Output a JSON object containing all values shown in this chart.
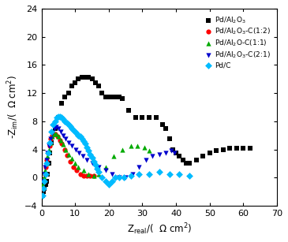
{
  "xlabel": "Z$_\\mathrm{real}$/(  Ω cm$^2$)",
  "ylabel": "-Z$_\\mathrm{im}$/(  Ω cm$^2$)",
  "xlim": [
    0,
    70
  ],
  "ylim": [
    -4,
    24
  ],
  "xticks": [
    0,
    10,
    20,
    30,
    40,
    50,
    60,
    70
  ],
  "yticks": [
    -4,
    0,
    4,
    8,
    12,
    16,
    20,
    24
  ],
  "series": [
    {
      "label": "Pd/Al$_2$O$_3$",
      "color": "black",
      "marker": "s",
      "ms": 4.5,
      "x": [
        0.3,
        0.6,
        0.9,
        1.2,
        1.5,
        1.8,
        2.1,
        2.5,
        3.0,
        4.0,
        5.0,
        6.0,
        7.0,
        8.0,
        9.0,
        10.0,
        11.0,
        12.0,
        13.0,
        14.0,
        15.0,
        16.0,
        17.0,
        18.0,
        19.0,
        20.0,
        21.0,
        22.0,
        23.0,
        24.0,
        26.0,
        28.0,
        30.0,
        32.0,
        34.0,
        36.0,
        37.0,
        38.0,
        39.0,
        40.0,
        41.0,
        42.0,
        43.0,
        44.0,
        46.0,
        48.0,
        50.0,
        52.0,
        54.0,
        56.0,
        58.0,
        60.0,
        62.0
      ],
      "y": [
        -2.5,
        -2.0,
        -1.5,
        -1.0,
        -0.5,
        0.5,
        2.0,
        3.5,
        5.0,
        7.0,
        8.5,
        10.5,
        11.5,
        12.0,
        13.0,
        13.5,
        14.0,
        14.3,
        14.3,
        14.2,
        14.0,
        13.5,
        13.0,
        12.0,
        11.5,
        11.5,
        11.5,
        11.5,
        11.5,
        11.2,
        9.5,
        8.5,
        8.5,
        8.5,
        8.5,
        7.5,
        7.0,
        5.5,
        4.0,
        3.5,
        3.0,
        2.5,
        2.0,
        2.0,
        2.5,
        3.0,
        3.5,
        3.8,
        4.0,
        4.2,
        4.2,
        4.2,
        4.2
      ]
    },
    {
      "label": "Pd/Al$_2$O$_3$-C(1:2)",
      "color": "#ff0000",
      "marker": "o",
      "ms": 4.5,
      "x": [
        0.4,
        0.7,
        1.0,
        1.3,
        1.6,
        2.0,
        2.4,
        2.8,
        3.2,
        3.7,
        4.2,
        4.8,
        5.4,
        6.0,
        6.8,
        7.5,
        8.5,
        9.5,
        10.5,
        11.5,
        12.5,
        13.5,
        14.5,
        15.5
      ],
      "y": [
        -1.5,
        -0.5,
        0.5,
        1.5,
        2.5,
        3.5,
        4.5,
        5.5,
        6.0,
        6.2,
        6.2,
        5.8,
        5.3,
        4.8,
        4.0,
        3.2,
        2.3,
        1.5,
        1.0,
        0.5,
        0.2,
        0.2,
        0.2,
        0.2
      ]
    },
    {
      "label": "Pd/Al$_2$O-C(1:1)",
      "color": "#00aa00",
      "marker": "^",
      "ms": 4.5,
      "x": [
        0.4,
        0.7,
        1.0,
        1.4,
        1.8,
        2.2,
        2.7,
        3.2,
        3.8,
        4.4,
        5.0,
        5.7,
        6.4,
        7.1,
        8.0,
        9.0,
        10.0,
        11.0,
        12.5,
        14.0,
        15.5,
        17.0,
        19.0,
        21.5,
        24.0,
        26.5,
        28.5,
        30.5,
        32.0
      ],
      "y": [
        -1.0,
        0.0,
        1.0,
        2.0,
        3.0,
        4.0,
        5.0,
        5.8,
        6.2,
        6.2,
        5.8,
        5.3,
        4.7,
        4.0,
        3.3,
        2.7,
        2.0,
        1.5,
        1.0,
        0.5,
        0.2,
        0.5,
        1.5,
        3.0,
        4.0,
        4.5,
        4.5,
        4.3,
        3.8
      ]
    },
    {
      "label": "Pd/Al$_2$O$_3$-C(2:1)",
      "color": "#0000cc",
      "marker": "v",
      "ms": 4.5,
      "x": [
        0.4,
        0.7,
        1.0,
        1.4,
        1.8,
        2.2,
        2.7,
        3.2,
        3.8,
        4.4,
        5.0,
        5.7,
        6.4,
        7.2,
        8.1,
        9.1,
        10.1,
        11.2,
        12.3,
        13.5,
        15.0,
        17.0,
        19.0,
        21.0,
        23.0,
        25.0,
        27.0,
        29.0,
        31.0,
        33.0,
        35.0,
        37.0,
        38.5,
        39.5
      ],
      "y": [
        -0.5,
        0.5,
        1.5,
        2.5,
        3.5,
        4.5,
        5.5,
        6.3,
        7.0,
        7.2,
        7.0,
        6.5,
        6.0,
        5.5,
        5.0,
        4.5,
        4.0,
        3.5,
        3.0,
        2.5,
        2.0,
        1.5,
        1.0,
        0.5,
        0.0,
        0.0,
        0.5,
        1.5,
        2.5,
        3.0,
        3.3,
        3.5,
        3.8,
        3.5
      ]
    },
    {
      "label": "Pd/C",
      "color": "#00bbff",
      "marker": "D",
      "ms": 4.5,
      "x": [
        0.3,
        0.6,
        0.9,
        1.2,
        1.6,
        2.0,
        2.5,
        3.0,
        3.5,
        4.0,
        4.5,
        5.0,
        5.5,
        6.0,
        6.5,
        7.0,
        7.5,
        8.0,
        8.5,
        9.0,
        9.5,
        10.0,
        10.5,
        11.0,
        11.5,
        12.0,
        12.5,
        13.0,
        13.5,
        14.0,
        14.5,
        15.0,
        15.5,
        16.0,
        16.5,
        17.0,
        18.0,
        19.0,
        20.0,
        21.0,
        22.0,
        23.0,
        24.5,
        26.5,
        29.0,
        32.0,
        35.0,
        38.0,
        41.0,
        44.0
      ],
      "y": [
        -2.5,
        -1.5,
        -0.5,
        0.5,
        2.0,
        3.5,
        5.0,
        6.5,
        7.5,
        8.0,
        8.5,
        8.7,
        8.7,
        8.5,
        8.3,
        8.0,
        7.8,
        7.5,
        7.3,
        7.0,
        6.8,
        6.5,
        6.3,
        6.0,
        5.8,
        5.5,
        5.2,
        4.8,
        4.3,
        3.8,
        3.3,
        2.8,
        2.3,
        1.8,
        1.3,
        0.8,
        0.0,
        -0.5,
        -1.0,
        -0.5,
        0.0,
        0.0,
        0.0,
        0.2,
        0.5,
        0.5,
        0.8,
        0.5,
        0.5,
        0.3
      ]
    }
  ]
}
